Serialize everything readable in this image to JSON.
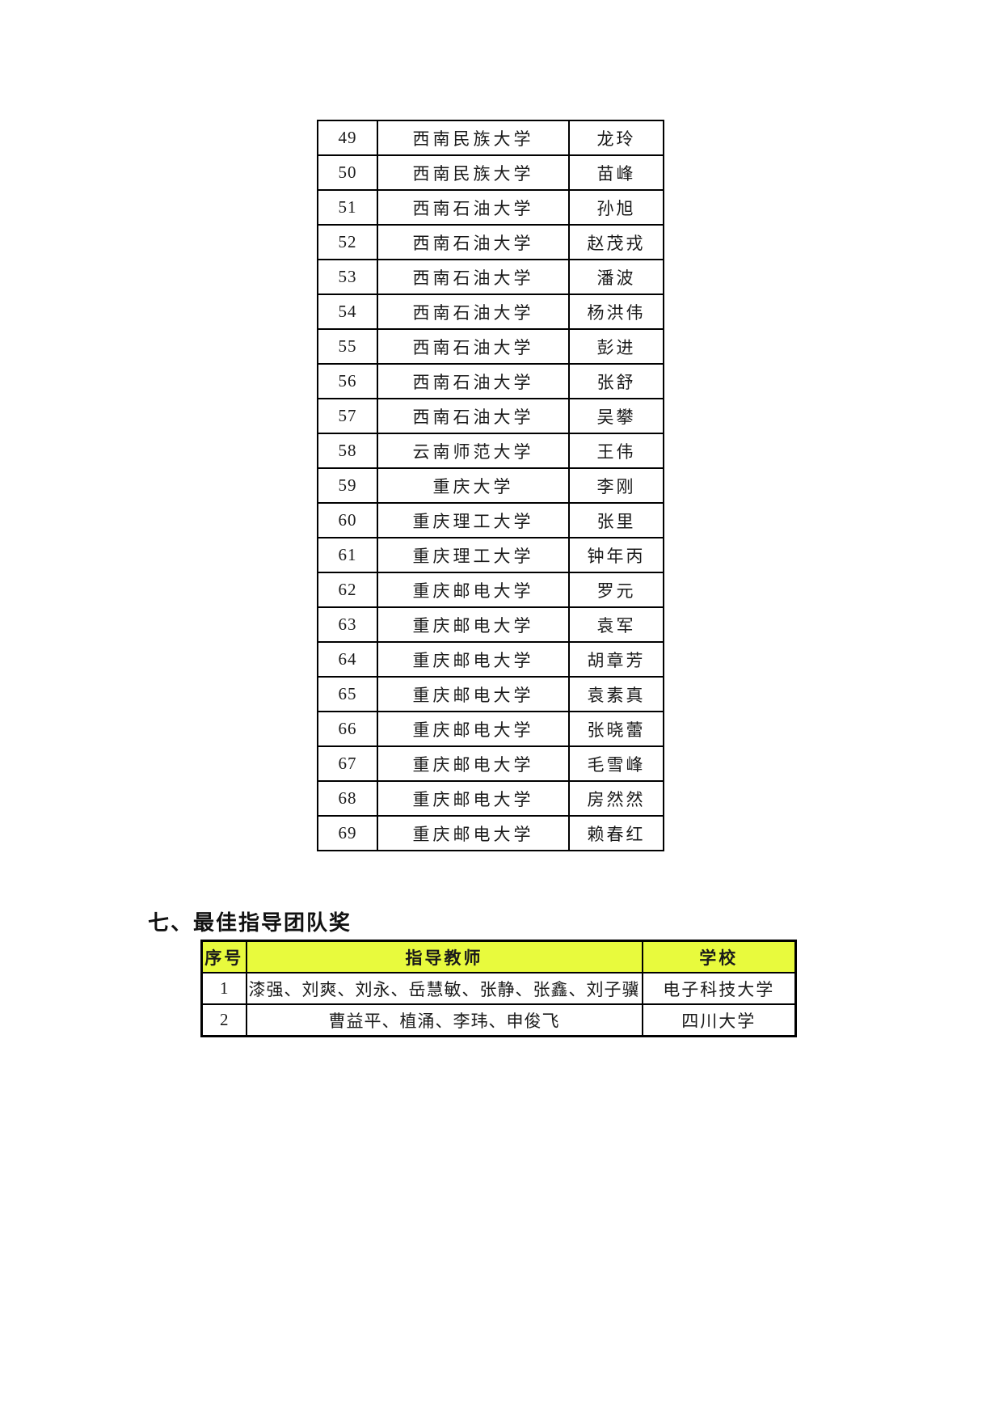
{
  "colors": {
    "page_background": "#ffffff",
    "table_border": "#000000",
    "header_highlight": "#e8fa3d",
    "text": "#1a1a1a"
  },
  "award_table": {
    "rows": [
      {
        "no": "49",
        "school": "西南民族大学",
        "name": "龙玲"
      },
      {
        "no": "50",
        "school": "西南民族大学",
        "name": "苗峰"
      },
      {
        "no": "51",
        "school": "西南石油大学",
        "name": "孙旭"
      },
      {
        "no": "52",
        "school": "西南石油大学",
        "name": "赵茂戎"
      },
      {
        "no": "53",
        "school": "西南石油大学",
        "name": "潘波"
      },
      {
        "no": "54",
        "school": "西南石油大学",
        "name": "杨洪伟"
      },
      {
        "no": "55",
        "school": "西南石油大学",
        "name": "彭进"
      },
      {
        "no": "56",
        "school": "西南石油大学",
        "name": "张舒"
      },
      {
        "no": "57",
        "school": "西南石油大学",
        "name": "吴攀"
      },
      {
        "no": "58",
        "school": "云南师范大学",
        "name": "王伟"
      },
      {
        "no": "59",
        "school": "重庆大学",
        "name": "李刚"
      },
      {
        "no": "60",
        "school": "重庆理工大学",
        "name": "张里"
      },
      {
        "no": "61",
        "school": "重庆理工大学",
        "name": "钟年丙"
      },
      {
        "no": "62",
        "school": "重庆邮电大学",
        "name": "罗元"
      },
      {
        "no": "63",
        "school": "重庆邮电大学",
        "name": "袁军"
      },
      {
        "no": "64",
        "school": "重庆邮电大学",
        "name": "胡章芳"
      },
      {
        "no": "65",
        "school": "重庆邮电大学",
        "name": "袁素真"
      },
      {
        "no": "66",
        "school": "重庆邮电大学",
        "name": "张晓蕾"
      },
      {
        "no": "67",
        "school": "重庆邮电大学",
        "name": "毛雪峰"
      },
      {
        "no": "68",
        "school": "重庆邮电大学",
        "name": "房然然"
      },
      {
        "no": "69",
        "school": "重庆邮电大学",
        "name": "赖春红"
      }
    ]
  },
  "section": {
    "heading": "七、最佳指导团队奖"
  },
  "team_award_table": {
    "headers": [
      "序号",
      "指导教师",
      "学校"
    ],
    "rows": [
      {
        "no": "1",
        "teachers": "漆强、刘爽、刘永、岳慧敏、张静、张鑫、刘子骥",
        "school": "电子科技大学"
      },
      {
        "no": "2",
        "teachers": "曹益平、植涌、李玮、申俊飞",
        "school": "四川大学"
      }
    ]
  }
}
